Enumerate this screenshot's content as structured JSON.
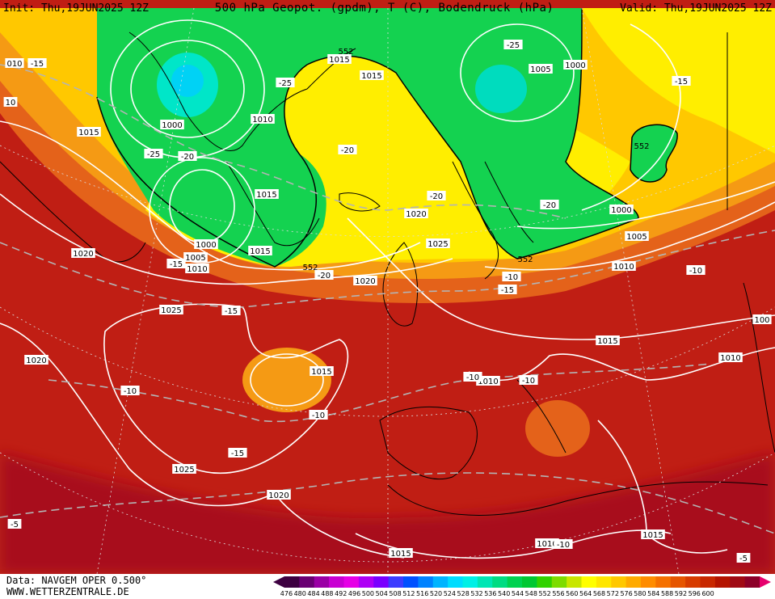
{
  "header": {
    "init": "Init: Thu,19JUN2025 12Z",
    "title": "500 hPa Geopot. (gpdm), T (C), Bodendruck (hPa)",
    "valid": "Valid: Thu,19JUN2025 12Z"
  },
  "footer": {
    "data_line": "Data: NAVGEM OPER 0.500°",
    "site": "WWW.WETTERZENTRALE.DE"
  },
  "color_scale": {
    "values": [
      "476",
      "480",
      "484",
      "488",
      "492",
      "496",
      "500",
      "504",
      "508",
      "512",
      "516",
      "520",
      "524",
      "528",
      "532",
      "536",
      "540",
      "544",
      "548",
      "552",
      "556",
      "560",
      "564",
      "568",
      "572",
      "576",
      "580",
      "584",
      "588",
      "592",
      "596",
      "600"
    ],
    "colors": [
      "#3d0040",
      "#6a0073",
      "#9a00a5",
      "#c800d2",
      "#e600e6",
      "#ae00f5",
      "#7a00ff",
      "#3c3cff",
      "#0050ff",
      "#0082ff",
      "#00b4ff",
      "#00dcff",
      "#00f0e6",
      "#00e6b4",
      "#00dc82",
      "#00d250",
      "#00c832",
      "#32d200",
      "#7ddc00",
      "#c8e600",
      "#ffff00",
      "#ffe600",
      "#ffc800",
      "#ffaa00",
      "#ff8c00",
      "#f57000",
      "#e65500",
      "#d73c00",
      "#c82800",
      "#b41400",
      "#a00a14",
      "#8c0028"
    ]
  },
  "pressure_labels": [
    "1015",
    "1015",
    "1015",
    "1000",
    "1010",
    "1005",
    "1000",
    "1015",
    "1020",
    "1025",
    "1015",
    "1000",
    "1005",
    "1010",
    "1015",
    "1015",
    "1020",
    "1025",
    "1020",
    "1020",
    "1025",
    "1010",
    "1010",
    "1005",
    "1000",
    "1010",
    "1015",
    "1020",
    "1010",
    "1015",
    "010",
    "10",
    "100"
  ],
  "temp_labels": [
    "-15",
    "-25",
    "-25",
    "-20",
    "-25",
    "-20",
    "-20",
    "-15",
    "-15",
    "-20",
    "-15",
    "-20",
    "-10",
    "-10",
    "-15",
    "-10",
    "-10",
    "-15",
    "-10",
    "-5",
    "-5",
    "-10",
    "-10"
  ],
  "geopot_labels": [
    "552",
    "552",
    "552",
    "552"
  ]
}
